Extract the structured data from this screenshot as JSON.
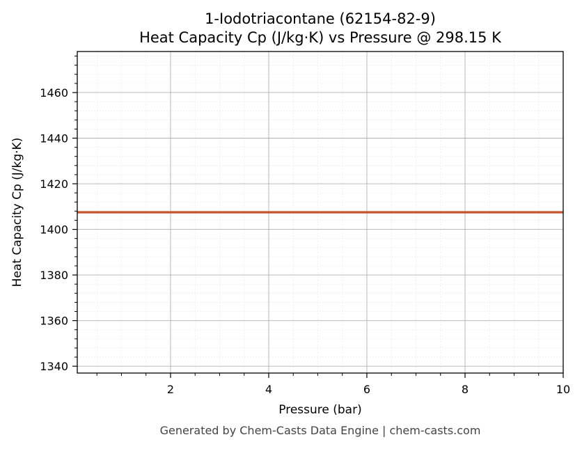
{
  "chart_data": {
    "type": "line",
    "title": "1-Iodotriacontane (62154-82-9)",
    "subtitle": "Heat Capacity Cp (J/kg·K) vs Pressure @ 298.15 K",
    "xlabel": "Pressure (bar)",
    "ylabel": "Heat Capacity Cp (J/kg·K)",
    "xlim": [
      0.1,
      10
    ],
    "ylim": [
      1337,
      1478
    ],
    "xticks": [
      2,
      4,
      6,
      8,
      10
    ],
    "xtick_labels": [
      "2",
      "4",
      "6",
      "8",
      "10"
    ],
    "yticks": [
      1340,
      1360,
      1380,
      1400,
      1420,
      1440,
      1460
    ],
    "ytick_labels": [
      "1340",
      "1360",
      "1380",
      "1400",
      "1420",
      "1440",
      "1460"
    ],
    "x_minor_step": 0.5,
    "y_minor_step": 4,
    "grid": true,
    "legend": "none",
    "series": [
      {
        "color": "#c8532a",
        "x": [
          0.1,
          10
        ],
        "y": [
          1407.5,
          1407.5
        ]
      }
    ]
  },
  "footer": "Generated by Chem-Casts Data Engine | chem-casts.com"
}
